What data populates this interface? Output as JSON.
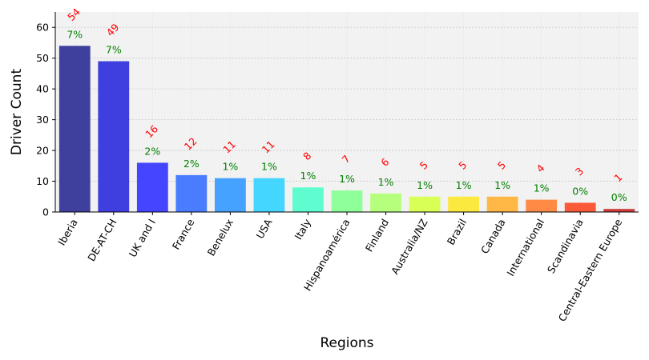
{
  "chart_data": {
    "type": "bar",
    "xlabel": "Regions",
    "ylabel": "Driver Count",
    "ylim": [
      0,
      65
    ],
    "yticks": [
      0,
      10,
      20,
      30,
      40,
      50,
      60
    ],
    "grid": true,
    "categories": [
      "Iberia",
      "DE-AT-CH",
      "UK and I",
      "France",
      "Benelux",
      "USA",
      "Italy",
      "Hispanoamérica",
      "Finland",
      "Australia/NZ",
      "Brazil",
      "Canada",
      "International",
      "Scandinavia",
      "Central-Eastern Europe"
    ],
    "values": [
      54,
      49,
      16,
      12,
      11,
      11,
      8,
      7,
      6,
      5,
      5,
      5,
      4,
      3,
      1
    ],
    "percent_labels": [
      "7%",
      "7%",
      "2%",
      "2%",
      "1%",
      "1%",
      "1%",
      "1%",
      "1%",
      "1%",
      "1%",
      "1%",
      "1%",
      "0%",
      "0%"
    ],
    "bar_colors": [
      "#3f3f9d",
      "#3f3fdf",
      "#4545ff",
      "#4a7cff",
      "#45a2ff",
      "#45d6ff",
      "#5ffcd0",
      "#8fff9a",
      "#b5ff7c",
      "#d8ff55",
      "#fbe93f",
      "#ffb845",
      "#ff8a45",
      "#fb5a38",
      "#d03d3d"
    ],
    "value_label_color": "#ff0000",
    "percent_label_color": "#008000",
    "plot_background": "#f2f2f2"
  }
}
